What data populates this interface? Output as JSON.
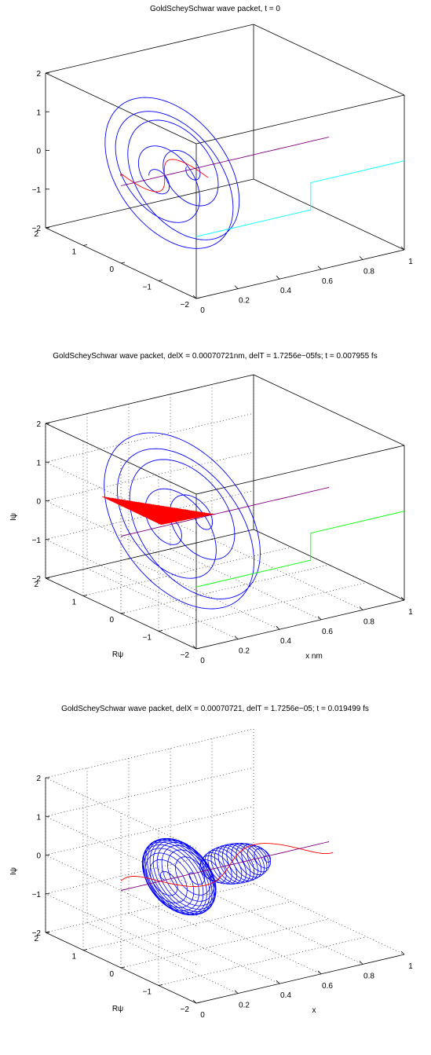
{
  "chart_data": [
    {
      "type": "line3d",
      "title": "GoldScheySchwar wave packet, t = 0",
      "xlabel": "",
      "ylabel": "",
      "zlabel": "",
      "grid": false,
      "xlim": [
        0,
        1
      ],
      "ylim": [
        -2,
        2
      ],
      "zlim": [
        -2,
        2
      ],
      "x_ticks": [
        "0",
        "0.2",
        "0.4",
        "0.6",
        "0.8",
        "1"
      ],
      "y_ticks": [
        "2",
        "1",
        "0",
        "−1",
        "−2"
      ],
      "z_ticks": [
        "2",
        "1",
        "0",
        "−1",
        "−2"
      ],
      "series": [
        {
          "color": "#0000ff",
          "form": "spiral",
          "x_center": 0.25,
          "amplitude": 1.8,
          "turns": 6
        },
        {
          "color": "#ff0000",
          "form": "envelope",
          "x_start": 0.0,
          "x_end": 0.4
        },
        {
          "color": "#800080",
          "form": "line",
          "x_start": 0.0,
          "x_end": 1.0
        },
        {
          "color": "#00ffff",
          "form": "step",
          "x_start": 0.0,
          "x_end": 1.0,
          "step_at": 0.55
        }
      ]
    },
    {
      "type": "line3d",
      "title": "GoldScheySchwar wave packet, delX = 0.00070721nm, delT = 1.7256e−05fs; t = 0.007955 fs",
      "xlabel": "x nm",
      "ylabel": "Rψ",
      "zlabel": "Iψ",
      "grid": true,
      "xlim": [
        0,
        1
      ],
      "ylim": [
        -2,
        2
      ],
      "zlim": [
        -2,
        2
      ],
      "x_ticks": [
        "0",
        "0.2",
        "0.4",
        "0.6",
        "0.8",
        "1"
      ],
      "y_ticks": [
        "2",
        "1",
        "0",
        "−1",
        "−2"
      ],
      "z_ticks": [
        "2",
        "1",
        "0",
        "−1",
        "−2"
      ],
      "series": [
        {
          "color": "#0000ff",
          "form": "spiral",
          "x_center": 0.3,
          "amplitude": 2.1,
          "turns": 6
        },
        {
          "color": "#ff0000",
          "form": "zigzag",
          "x_start": 0.05,
          "x_end": 0.45
        },
        {
          "color": "#800080",
          "form": "line",
          "x_start": 0.0,
          "x_end": 1.0
        },
        {
          "color": "#00ff00",
          "form": "step",
          "x_start": 0.0,
          "x_end": 1.0,
          "step_at": 0.55
        }
      ]
    },
    {
      "type": "line3d",
      "title": "GoldScheySchwar wave packet, delX = 0.00070721, delT = 1.7256e−05; t = 0.019499 fs",
      "xlabel": "x",
      "ylabel": "Rψ",
      "zlabel": "Iψ",
      "grid": true,
      "xlim": [
        0,
        1
      ],
      "ylim": [
        -2,
        2
      ],
      "zlim": [
        -2,
        2
      ],
      "x_ticks": [
        "0",
        "0.2",
        "0.4",
        "0.6",
        "0.8",
        "1"
      ],
      "y_ticks": [
        "2",
        "1",
        "0",
        "−1",
        "−2"
      ],
      "z_ticks": [
        "2",
        "1",
        "0",
        "−1",
        "−2"
      ],
      "series": [
        {
          "color": "#0000ff",
          "form": "two_packets",
          "x_centers": [
            0.28,
            0.55
          ],
          "amplitudes": [
            0.9,
            0.45
          ]
        },
        {
          "color": "#ff0000",
          "form": "envelope",
          "x_start": 0.0,
          "x_end": 1.0
        },
        {
          "color": "#800080",
          "form": "line",
          "x_start": 0.0,
          "x_end": 1.0
        }
      ]
    }
  ]
}
